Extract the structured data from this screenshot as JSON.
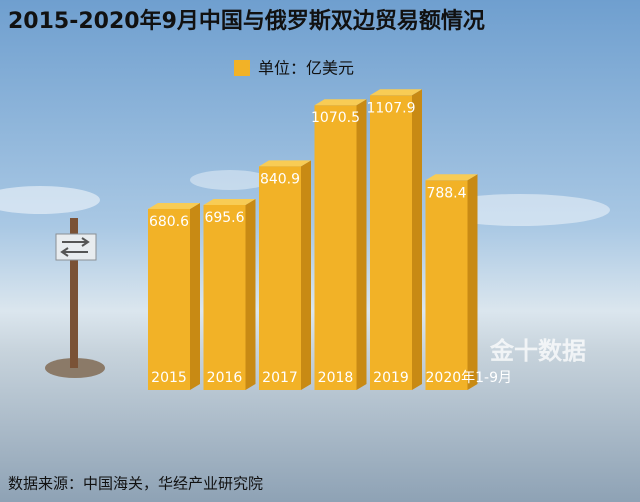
{
  "chart_data": {
    "type": "bar",
    "title": "2015-2020年9月中国与俄罗斯双边贸易额情况",
    "categories": [
      "2015",
      "2016",
      "2017",
      "2018",
      "2019",
      "2020年1-9月"
    ],
    "series": [
      {
        "name": "单位：亿美元",
        "color": "#f2b227",
        "values": [
          680.6,
          695.6,
          840.9,
          1070.5,
          1107.9,
          788.4
        ]
      }
    ],
    "source": "数据来源：中国海关，华经产业研究院",
    "watermark": "金十数据"
  }
}
